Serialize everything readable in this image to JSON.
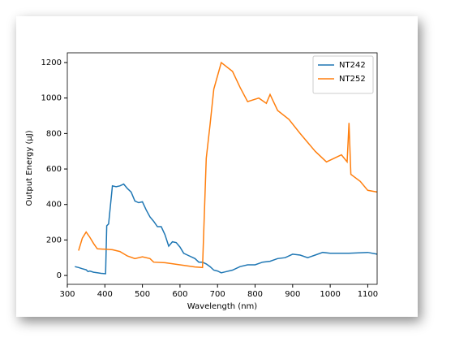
{
  "chart_data": {
    "type": "line",
    "x_label": "Wavelength (nm)",
    "y_label": "Output Energy (μJ)",
    "xlim": [
      300,
      1125
    ],
    "ylim": [
      -50,
      1255
    ],
    "xticks": [
      300,
      400,
      500,
      600,
      700,
      800,
      900,
      1000,
      1100
    ],
    "yticks": [
      0,
      200,
      400,
      600,
      800,
      1000,
      1200
    ],
    "legend": "upper right",
    "series": [
      {
        "name": "NT242",
        "color": "#1f77b4",
        "x": [
          320,
          330,
          340,
          350,
          355,
          360,
          370,
          380,
          390,
          400,
          402,
          405,
          410,
          420,
          430,
          440,
          450,
          460,
          470,
          480,
          490,
          500,
          510,
          520,
          530,
          540,
          550,
          560,
          570,
          580,
          590,
          600,
          610,
          620,
          640,
          650,
          660,
          670,
          680,
          690,
          700,
          710,
          720,
          740,
          760,
          780,
          800,
          820,
          840,
          860,
          880,
          900,
          920,
          940,
          960,
          980,
          1000,
          1050,
          1100,
          1125
        ],
        "values": [
          50,
          45,
          38,
          32,
          22,
          25,
          18,
          15,
          12,
          10,
          10,
          280,
          290,
          505,
          500,
          505,
          515,
          490,
          470,
          420,
          410,
          415,
          370,
          330,
          305,
          275,
          275,
          230,
          165,
          190,
          185,
          160,
          125,
          115,
          95,
          75,
          75,
          65,
          50,
          30,
          25,
          15,
          20,
          30,
          50,
          60,
          60,
          75,
          80,
          95,
          100,
          120,
          115,
          100,
          115,
          130,
          125,
          125,
          130,
          120
        ]
      },
      {
        "name": "NT252",
        "color": "#ff7f0e",
        "x": [
          330,
          340,
          350,
          360,
          370,
          380,
          400,
          420,
          440,
          460,
          480,
          500,
          520,
          530,
          560,
          600,
          640,
          660,
          670,
          680,
          690,
          710,
          740,
          760,
          780,
          810,
          830,
          840,
          860,
          890,
          920,
          960,
          990,
          1030,
          1045,
          1050,
          1055,
          1080,
          1100,
          1125
        ],
        "values": [
          140,
          210,
          245,
          215,
          180,
          150,
          148,
          145,
          135,
          110,
          95,
          105,
          95,
          75,
          72,
          60,
          48,
          45,
          660,
          850,
          1050,
          1200,
          1150,
          1060,
          980,
          1000,
          970,
          1020,
          930,
          880,
          800,
          700,
          640,
          680,
          640,
          860,
          570,
          530,
          480,
          470
        ]
      }
    ]
  }
}
